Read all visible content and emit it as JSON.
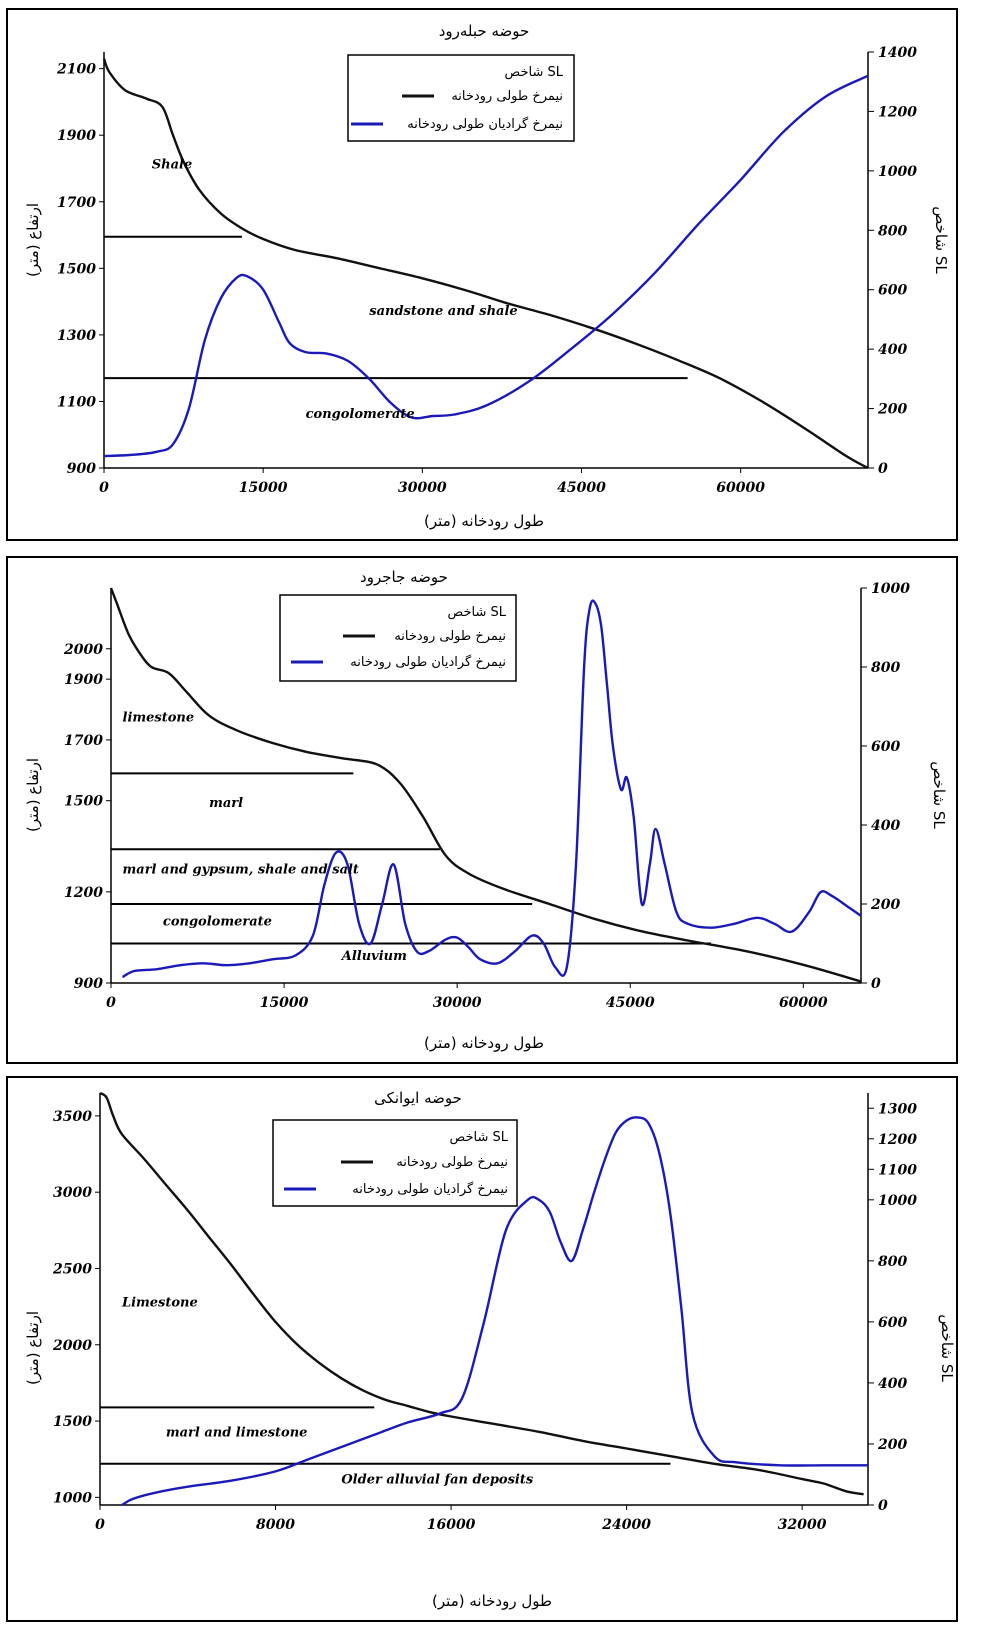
{
  "colors": {
    "elevation": "#111111",
    "sl": "#1a1ab8",
    "axis": "#000000"
  },
  "chart_data": [
    {
      "type": "line",
      "title": "حوضه حبله‌رود",
      "xlabel": "طول رودخانه (متر)",
      "ylabel_left": "ارتفاع (متر)",
      "ylabel_right": "شاخص SL",
      "xlim": [
        0,
        72000
      ],
      "ylim_left": [
        900,
        2150
      ],
      "ylim_right": [
        0,
        1400
      ],
      "x_ticks": [
        0,
        15000,
        30000,
        45000,
        60000
      ],
      "x_tick_labels": [
        "0",
        "15000",
        "30000",
        "45000",
        "60000"
      ],
      "y_left_ticks": [
        900,
        1100,
        1300,
        1500,
        1700,
        1900,
        2100
      ],
      "y_left_tick_labels": [
        "900",
        "1100",
        "1300",
        "1500",
        "1700",
        "1900",
        "2100"
      ],
      "y_right_ticks": [
        0,
        200,
        400,
        600,
        800,
        1000,
        1200,
        1400
      ],
      "y_right_tick_labels": [
        "0",
        "200",
        "400",
        "600",
        "800",
        "1000",
        "1200",
        "1400"
      ],
      "legend": {
        "heading": "شاخص SL",
        "entries": [
          "نیمرخ طولی رودخانه",
          "نیمرخ گرادیان طولی رودخانه"
        ],
        "placement": "top-center"
      },
      "series": [
        {
          "name": "نیمرخ طولی رودخانه",
          "axis": "left",
          "x": [
            0,
            500,
            2000,
            4000,
            5500,
            6500,
            7500,
            9000,
            11000,
            13000,
            15000,
            18000,
            22000,
            26000,
            30000,
            34000,
            38000,
            42000,
            46000,
            50000,
            54000,
            58000,
            62000,
            66000,
            70000,
            72000
          ],
          "y": [
            2130,
            2090,
            2035,
            2010,
            1985,
            1900,
            1820,
            1735,
            1665,
            1620,
            1588,
            1555,
            1530,
            1500,
            1470,
            1435,
            1395,
            1360,
            1320,
            1275,
            1225,
            1170,
            1100,
            1020,
            935,
            900
          ]
        },
        {
          "name": "نیمرخ گرادیان طولی رودخانه",
          "axis": "right",
          "x": [
            0,
            3000,
            5000,
            6500,
            8000,
            9500,
            11000,
            12500,
            13500,
            15000,
            16500,
            17500,
            19000,
            21000,
            23000,
            25000,
            27000,
            29000,
            31000,
            33000,
            36000,
            40000,
            44000,
            48000,
            52000,
            56000,
            60000,
            64000,
            68000,
            72000
          ],
          "y": [
            40,
            45,
            55,
            80,
            200,
            430,
            570,
            640,
            645,
            600,
            490,
            420,
            390,
            385,
            360,
            300,
            220,
            170,
            175,
            180,
            210,
            290,
            400,
            520,
            660,
            820,
            970,
            1130,
            1250,
            1320
          ]
        }
      ],
      "boundaries": [
        {
          "x_start": 0,
          "x_end": 13000,
          "elevation": 1595
        },
        {
          "x_start": 0,
          "x_end": 55000,
          "elevation": 1170
        }
      ],
      "annotations": [
        {
          "text": "Shale",
          "x": 4500,
          "y": 1800
        },
        {
          "text": "sandstone and shale",
          "x": 25000,
          "y": 1360
        },
        {
          "text": "congolomerate",
          "x": 19000,
          "y": 1050
        }
      ]
    },
    {
      "type": "line",
      "title": "حوضه جاجرود",
      "xlabel": "طول رودخانه (متر)",
      "ylabel_left": "ارتفاع (متر)",
      "ylabel_right": "شاخص SL",
      "xlim": [
        0,
        65000
      ],
      "ylim_left": [
        900,
        2200
      ],
      "ylim_right": [
        0,
        1000
      ],
      "x_ticks": [
        0,
        15000,
        30000,
        45000,
        60000
      ],
      "x_tick_labels": [
        "0",
        "15000",
        "30000",
        "45000",
        "60000"
      ],
      "y_left_ticks": [
        900,
        1200,
        1500,
        1700,
        1900,
        2000
      ],
      "y_left_tick_labels": [
        "900",
        "1200",
        "1500",
        "1700",
        "1900",
        "2000"
      ],
      "y_right_ticks": [
        0,
        200,
        400,
        600,
        800,
        1000
      ],
      "y_right_tick_labels": [
        "0",
        "200",
        "400",
        "600",
        "800",
        "1000"
      ],
      "legend": {
        "heading": "شاخص SL",
        "entries": [
          "نیمرخ طولی رودخانه",
          "نیمرخ گرادیان طولی رودخانه"
        ],
        "placement": "top-center"
      },
      "series": [
        {
          "name": "نیمرخ طولی رودخانه",
          "axis": "left",
          "x": [
            0,
            500,
            1500,
            2500,
            3500,
            5000,
            6500,
            8500,
            11000,
            14000,
            17000,
            20000,
            23000,
            25000,
            27000,
            29000,
            31000,
            34000,
            38000,
            42000,
            46000,
            50000,
            55000,
            60000,
            65000
          ],
          "y": [
            2200,
            2150,
            2050,
            1985,
            1940,
            1920,
            1860,
            1780,
            1730,
            1690,
            1660,
            1640,
            1620,
            1560,
            1450,
            1320,
            1260,
            1210,
            1160,
            1110,
            1070,
            1040,
            1005,
            960,
            905
          ]
        },
        {
          "name": "نیمرخ گرادیان طولی رودخانه",
          "axis": "left_sl",
          "axis_units": "SL",
          "x": [
            1000,
            2000,
            4000,
            6000,
            8000,
            10000,
            12000,
            14000,
            16000,
            17500,
            18500,
            19500,
            20500,
            21500,
            22500,
            23500,
            24500,
            25500,
            26500,
            27500,
            29000,
            30000,
            31000,
            32000,
            33500,
            35000,
            36500,
            37500,
            38500,
            39500,
            40300,
            41000,
            41500,
            42000,
            42500,
            43000,
            43500,
            44200,
            44700,
            45300,
            46000,
            46700,
            47200,
            48000,
            49000,
            50000,
            52000,
            54000,
            56000,
            57500,
            59000,
            60500,
            61500,
            62500,
            64000,
            65000
          ],
          "y": [
            15,
            30,
            35,
            45,
            50,
            45,
            50,
            60,
            70,
            120,
            250,
            330,
            300,
            150,
            100,
            200,
            300,
            150,
            80,
            80,
            110,
            115,
            90,
            60,
            50,
            80,
            120,
            100,
            40,
            40,
            300,
            800,
            950,
            960,
            900,
            750,
            600,
            490,
            520,
            420,
            200,
            300,
            390,
            300,
            180,
            150,
            140,
            150,
            165,
            150,
            130,
            180,
            230,
            220,
            190,
            170
          ]
        }
      ],
      "boundaries": [
        {
          "x_start": 0,
          "x_end": 21000,
          "elevation": 1590
        },
        {
          "x_start": 0,
          "x_end": 28500,
          "elevation": 1340
        },
        {
          "x_start": 0,
          "x_end": 36500,
          "elevation": 1160
        },
        {
          "x_start": 0,
          "x_end": 52000,
          "elevation": 1030
        }
      ],
      "annotations": [
        {
          "text": "limestone",
          "x": 1000,
          "y": 1760
        },
        {
          "text": "marl",
          "x": 8500,
          "y": 1480
        },
        {
          "text": "marl and gypsum, shale and salt",
          "x": 1000,
          "y": 1260
        },
        {
          "text": "congolomerate",
          "x": 4500,
          "y": 1090
        },
        {
          "text": "Alluvium",
          "x": 20000,
          "y": 975
        }
      ]
    },
    {
      "type": "line",
      "title": "حوضه ایوانکی",
      "xlabel": "طول رودخانه (متر)",
      "ylabel_left": "ارتفاع (متر)",
      "ylabel_right": "شاخص SL",
      "xlim": [
        0,
        35000
      ],
      "ylim_left": [
        950,
        3650
      ],
      "ylim_right": [
        0,
        1350
      ],
      "x_ticks": [
        0,
        8000,
        16000,
        24000,
        32000
      ],
      "x_tick_labels": [
        "0",
        "8000",
        "16000",
        "24000",
        "32000"
      ],
      "y_left_ticks": [
        1000,
        1500,
        2000,
        2500,
        3000,
        3500
      ],
      "y_left_tick_labels": [
        "1000",
        "1500",
        "2000",
        "2500",
        "3000",
        "3500"
      ],
      "y_right_ticks": [
        0,
        200,
        400,
        600,
        800,
        1000,
        1100,
        1200,
        1300
      ],
      "y_right_tick_labels": [
        "0",
        "200",
        "400",
        "600",
        "800",
        "1000",
        "1100",
        "1200",
        "1300"
      ],
      "legend": {
        "heading": "شاخص SL",
        "entries": [
          "نیمرخ طولی رودخانه",
          "نیمرخ گرادیان طولی رودخانه"
        ],
        "placement": "top-center"
      },
      "series": [
        {
          "name": "نیمرخ طولی رودخانه",
          "axis": "left",
          "x": [
            0,
            300,
            600,
            1000,
            2000,
            3000,
            4000,
            5000,
            6000,
            7000,
            8000,
            9000,
            10000,
            11000,
            12000,
            13000,
            14000,
            15000,
            16000,
            18000,
            20000,
            22000,
            24000,
            26000,
            28000,
            30000,
            32000,
            33000,
            34000,
            34800
          ],
          "y": [
            3650,
            3620,
            3500,
            3380,
            3220,
            3050,
            2880,
            2700,
            2520,
            2330,
            2150,
            2000,
            1880,
            1780,
            1700,
            1640,
            1600,
            1560,
            1530,
            1480,
            1430,
            1370,
            1320,
            1270,
            1220,
            1180,
            1120,
            1090,
            1040,
            1020
          ]
        },
        {
          "name": "نیمرخ گرادیان طولی رودخانه",
          "axis": "right",
          "x": [
            1000,
            1500,
            2500,
            4000,
            6000,
            8000,
            9500,
            11000,
            12500,
            14000,
            15500,
            16500,
            17500,
            18500,
            19500,
            20000,
            20500,
            21000,
            21500,
            22000,
            22500,
            23000,
            23500,
            24000,
            24500,
            25000,
            25500,
            26000,
            26500,
            27000,
            28000,
            29000,
            31000,
            33000,
            35000
          ],
          "y": [
            0,
            20,
            40,
            60,
            80,
            110,
            150,
            190,
            230,
            270,
            300,
            350,
            600,
            900,
            1000,
            1000,
            960,
            860,
            800,
            900,
            1020,
            1130,
            1220,
            1260,
            1270,
            1250,
            1150,
            950,
            640,
            300,
            160,
            140,
            130,
            130,
            130
          ]
        }
      ],
      "boundaries": [
        {
          "x_start": 0,
          "x_end": 12500,
          "elevation": 1590
        },
        {
          "x_start": 0,
          "x_end": 26000,
          "elevation": 1220
        }
      ],
      "annotations": [
        {
          "text": "Limestone",
          "x": 1000,
          "y": 2250
        },
        {
          "text": "marl and limestone",
          "x": 3000,
          "y": 1400
        },
        {
          "text": "Older alluvial fan deposits",
          "x": 11000,
          "y": 1090
        }
      ]
    }
  ]
}
